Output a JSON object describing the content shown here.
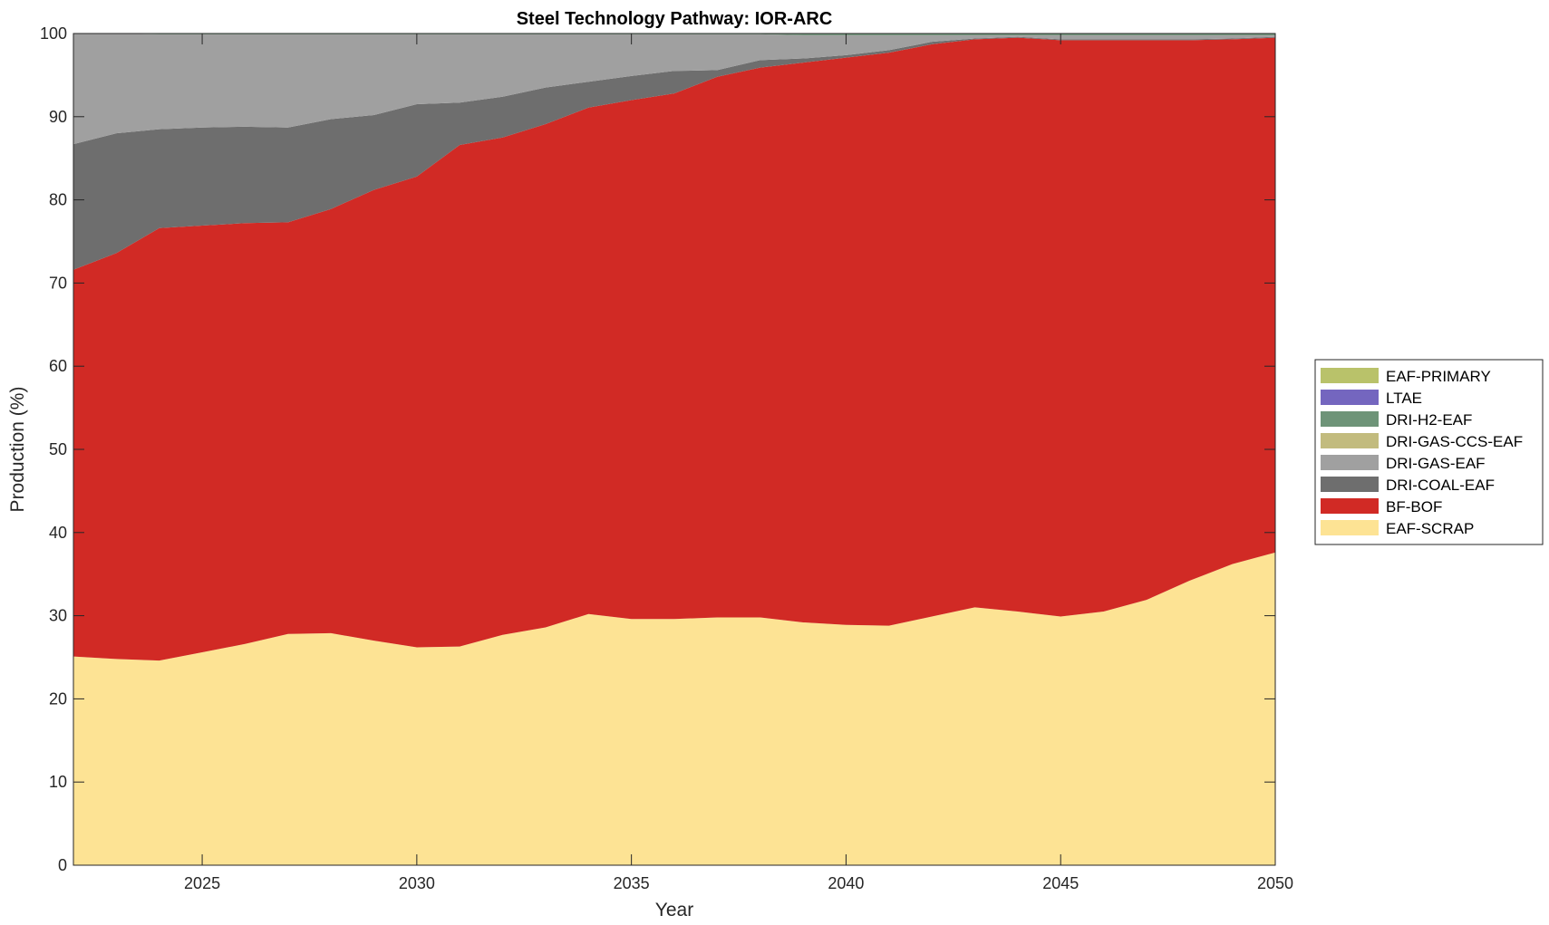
{
  "chart_data": {
    "type": "area",
    "stacked": true,
    "title": "Steel Technology Pathway: IOR-ARC",
    "xlabel": "Year",
    "ylabel": "Production (%)",
    "xlim": [
      2022,
      2050
    ],
    "ylim": [
      0,
      100
    ],
    "xticks": [
      2025,
      2030,
      2035,
      2040,
      2045,
      2050
    ],
    "yticks": [
      0,
      10,
      20,
      30,
      40,
      50,
      60,
      70,
      80,
      90,
      100
    ],
    "grid": false,
    "legend_position": "right",
    "x": [
      2022,
      2023,
      2024,
      2025,
      2026,
      2027,
      2028,
      2029,
      2030,
      2031,
      2032,
      2033,
      2034,
      2035,
      2036,
      2037,
      2038,
      2039,
      2040,
      2041,
      2042,
      2043,
      2044,
      2045,
      2046,
      2047,
      2048,
      2049,
      2050
    ],
    "series": [
      {
        "name": "EAF-SCRAP",
        "color": "#fde394",
        "values": [
          25.1,
          24.8,
          24.6,
          25.6,
          26.6,
          27.8,
          27.9,
          27.0,
          26.2,
          26.3,
          27.7,
          28.6,
          30.2,
          29.6,
          29.6,
          29.8,
          29.8,
          29.2,
          28.9,
          28.8,
          29.9,
          31.0,
          30.5,
          29.9,
          30.5,
          31.9,
          34.2,
          36.2,
          37.6
        ]
      },
      {
        "name": "BF-BOF",
        "color": "#d12a25",
        "values": [
          46.5,
          48.8,
          52.0,
          51.3,
          50.6,
          49.5,
          51.0,
          54.2,
          56.6,
          60.3,
          59.8,
          60.5,
          60.9,
          62.4,
          63.2,
          65.0,
          66.1,
          67.3,
          68.2,
          68.9,
          68.8,
          68.3,
          69.0,
          69.3,
          68.7,
          67.3,
          65.0,
          63.1,
          61.9
        ]
      },
      {
        "name": "DRI-COAL-EAF",
        "color": "#6e6e6e",
        "values": [
          15.1,
          14.4,
          11.9,
          11.8,
          11.6,
          11.4,
          10.8,
          9.0,
          8.7,
          5.1,
          4.9,
          4.4,
          3.1,
          2.9,
          2.7,
          0.8,
          0.9,
          0.5,
          0.3,
          0.3,
          0.3,
          0.1,
          0.1,
          0.1,
          0.1,
          0.1,
          0.1,
          0.1,
          0.1
        ]
      },
      {
        "name": "DRI-GAS-EAF",
        "color": "#a0a0a0",
        "values": [
          13.3,
          12.0,
          11.4,
          11.2,
          11.1,
          11.2,
          10.2,
          9.7,
          8.4,
          8.2,
          7.5,
          6.4,
          5.7,
          5.0,
          4.4,
          4.3,
          3.1,
          2.8,
          2.4,
          1.8,
          0.8,
          0.4,
          0.2,
          0.5,
          0.5,
          0.5,
          0.5,
          0.4,
          0.2
        ]
      },
      {
        "name": "DRI-GAS-CCS-EAF",
        "color": "#c2bb7e",
        "values": [
          0,
          0,
          0,
          0,
          0,
          0,
          0,
          0,
          0,
          0,
          0,
          0,
          0,
          0,
          0,
          0,
          0,
          0,
          0,
          0,
          0,
          0,
          0,
          0,
          0,
          0,
          0,
          0,
          0
        ]
      },
      {
        "name": "DRI-H2-EAF",
        "color": "#6e9478",
        "values": [
          0,
          0,
          0.1,
          0.1,
          0.1,
          0.1,
          0.1,
          0.1,
          0.1,
          0.1,
          0.1,
          0.1,
          0.1,
          0.1,
          0.1,
          0.1,
          0.1,
          0.2,
          0.2,
          0.2,
          0.2,
          0.2,
          0.2,
          0.2,
          0.2,
          0.2,
          0.2,
          0.2,
          0.2
        ]
      },
      {
        "name": "LTAE",
        "color": "#7466bf",
        "values": [
          0,
          0,
          0,
          0,
          0,
          0,
          0,
          0,
          0,
          0,
          0,
          0,
          0,
          0,
          0,
          0,
          0,
          0,
          0,
          0,
          0,
          0,
          0,
          0,
          0,
          0,
          0,
          0,
          0
        ]
      },
      {
        "name": "EAF-PRIMARY",
        "color": "#b9c26a",
        "values": [
          0,
          0,
          0,
          0,
          0,
          0,
          0,
          0,
          0,
          0,
          0,
          0,
          0,
          0,
          0,
          0,
          0,
          0,
          0,
          0,
          0,
          0,
          0,
          0,
          0,
          0,
          0,
          0,
          0
        ]
      }
    ]
  }
}
